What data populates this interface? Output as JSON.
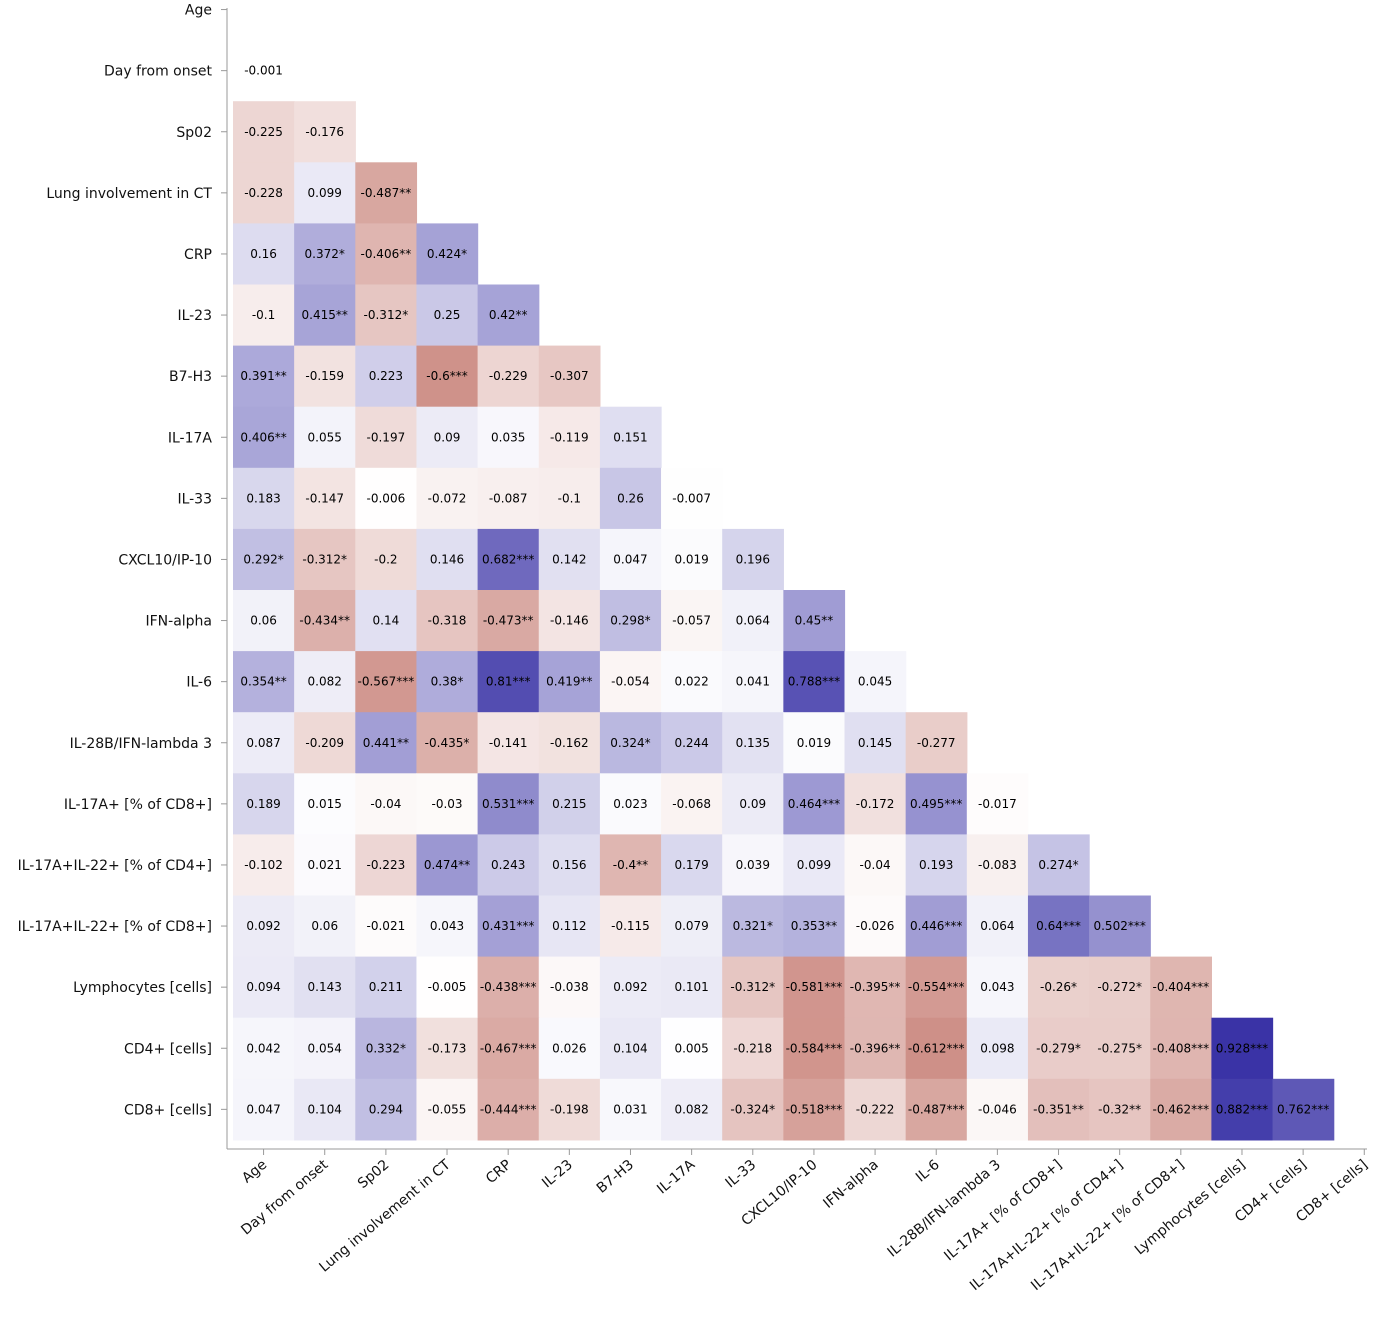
{
  "chart_data": {
    "type": "heatmap",
    "title": "",
    "variables": [
      "Age",
      "Day from onset",
      "Sp02",
      "Lung involvement in CT",
      "CRP",
      "IL-23",
      "B7-H3",
      "IL-17A",
      "IL-33",
      "CXCL10/IP-10",
      "IFN-alpha",
      "IL-6",
      "IL-28B/IFN-lambda 3",
      "IL-17A+ [% of CD8+]",
      "IL-17A+IL-22+ [% of CD4+]",
      "IL-17A+IL-22+ [% of CD8+]",
      "Lymphocytes [cells]",
      "CD4+ [cells]",
      "CD8+ [cells]"
    ],
    "values": [
      [],
      [
        -0.001
      ],
      [
        -0.225,
        -0.176
      ],
      [
        -0.228,
        0.099,
        -0.487
      ],
      [
        0.16,
        0.372,
        -0.406,
        0.424
      ],
      [
        -0.1,
        0.415,
        -0.312,
        0.25,
        0.42
      ],
      [
        0.391,
        -0.159,
        0.223,
        -0.6,
        -0.229,
        -0.307
      ],
      [
        0.406,
        0.055,
        -0.197,
        0.09,
        0.035,
        -0.119,
        0.151
      ],
      [
        0.183,
        -0.147,
        -0.006,
        -0.072,
        -0.087,
        -0.1,
        0.26,
        -0.007
      ],
      [
        0.292,
        -0.312,
        -0.2,
        0.146,
        0.682,
        0.142,
        0.047,
        0.019,
        0.196
      ],
      [
        0.06,
        -0.434,
        0.14,
        -0.318,
        -0.473,
        -0.146,
        0.298,
        -0.057,
        0.064,
        0.45
      ],
      [
        0.354,
        0.082,
        -0.567,
        0.38,
        0.81,
        0.419,
        -0.054,
        0.022,
        0.041,
        0.788,
        0.045
      ],
      [
        0.087,
        -0.209,
        0.441,
        -0.435,
        -0.141,
        -0.162,
        0.324,
        0.244,
        0.135,
        0.019,
        0.145,
        -0.277
      ],
      [
        0.189,
        0.015,
        -0.04,
        -0.03,
        0.531,
        0.215,
        0.023,
        -0.068,
        0.09,
        0.464,
        -0.172,
        0.495,
        -0.017
      ],
      [
        -0.102,
        0.021,
        -0.223,
        0.474,
        0.243,
        0.156,
        -0.4,
        0.179,
        0.039,
        0.099,
        -0.04,
        0.193,
        -0.083,
        0.274
      ],
      [
        0.092,
        0.06,
        -0.021,
        0.043,
        0.431,
        0.112,
        -0.115,
        0.079,
        0.321,
        0.353,
        -0.026,
        0.446,
        0.064,
        0.64,
        0.502
      ],
      [
        0.094,
        0.143,
        0.211,
        -0.005,
        -0.438,
        -0.038,
        0.092,
        0.101,
        -0.312,
        -0.581,
        -0.395,
        -0.554,
        0.043,
        -0.26,
        -0.272,
        -0.404
      ],
      [
        0.042,
        0.054,
        0.332,
        -0.173,
        -0.467,
        0.026,
        0.104,
        0.005,
        -0.218,
        -0.584,
        -0.396,
        -0.612,
        0.098,
        -0.279,
        -0.275,
        -0.408,
        0.928
      ],
      [
        0.047,
        0.104,
        0.294,
        -0.055,
        -0.444,
        -0.198,
        0.031,
        0.082,
        -0.324,
        -0.518,
        -0.222,
        -0.487,
        -0.046,
        -0.351,
        -0.32,
        -0.462,
        0.882,
        0.762
      ]
    ],
    "labels": [
      [],
      [
        "-0.001"
      ],
      [
        "-0.225",
        "-0.176"
      ],
      [
        "-0.228",
        "0.099",
        "-0.487**"
      ],
      [
        "0.16",
        "0.372*",
        "-0.406**",
        "0.424*"
      ],
      [
        "-0.1",
        "0.415**",
        "-0.312*",
        "0.25",
        "0.42**"
      ],
      [
        "0.391**",
        "-0.159",
        "0.223",
        "-0.6***",
        "-0.229",
        "-0.307"
      ],
      [
        "0.406**",
        "0.055",
        "-0.197",
        "0.09",
        "0.035",
        "-0.119",
        "0.151"
      ],
      [
        "0.183",
        "-0.147",
        "-0.006",
        "-0.072",
        "-0.087",
        "-0.1",
        "0.26",
        "-0.007"
      ],
      [
        "0.292*",
        "-0.312*",
        "-0.2",
        "0.146",
        "0.682***",
        "0.142",
        "0.047",
        "0.019",
        "0.196"
      ],
      [
        "0.06",
        "-0.434**",
        "0.14",
        "-0.318",
        "-0.473**",
        "-0.146",
        "0.298*",
        "-0.057",
        "0.064",
        "0.45**"
      ],
      [
        "0.354**",
        "0.082",
        "-0.567***",
        "0.38*",
        "0.81***",
        "0.419**",
        "-0.054",
        "0.022",
        "0.041",
        "0.788***",
        "0.045"
      ],
      [
        "0.087",
        "-0.209",
        "0.441**",
        "-0.435*",
        "-0.141",
        "-0.162",
        "0.324*",
        "0.244",
        "0.135",
        "0.019",
        "0.145",
        "-0.277"
      ],
      [
        "0.189",
        "0.015",
        "-0.04",
        "-0.03",
        "0.531***",
        "0.215",
        "0.023",
        "-0.068",
        "0.09",
        "0.464***",
        "-0.172",
        "0.495***",
        "-0.017"
      ],
      [
        "-0.102",
        "0.021",
        "-0.223",
        "0.474**",
        "0.243",
        "0.156",
        "-0.4**",
        "0.179",
        "0.039",
        "0.099",
        "-0.04",
        "0.193",
        "-0.083",
        "0.274*"
      ],
      [
        "0.092",
        "0.06",
        "-0.021",
        "0.043",
        "0.431***",
        "0.112",
        "-0.115",
        "0.079",
        "0.321*",
        "0.353**",
        "-0.026",
        "0.446***",
        "0.064",
        "0.64***",
        "0.502***"
      ],
      [
        "0.094",
        "0.143",
        "0.211",
        "-0.005",
        "-0.438***",
        "-0.038",
        "0.092",
        "0.101",
        "-0.312*",
        "-0.581***",
        "-0.395**",
        "-0.554***",
        "0.043",
        "-0.26*",
        "-0.272*",
        "-0.404***"
      ],
      [
        "0.042",
        "0.054",
        "0.332*",
        "-0.173",
        "-0.467***",
        "0.026",
        "0.104",
        "0.005",
        "-0.218",
        "-0.584***",
        "-0.396**",
        "-0.612***",
        "0.098",
        "-0.279*",
        "-0.275*",
        "-0.408***",
        "0.928***"
      ],
      [
        "0.047",
        "0.104",
        "0.294",
        "-0.055",
        "-0.444***",
        "-0.198",
        "0.031",
        "0.082",
        "-0.324*",
        "-0.518***",
        "-0.222",
        "-0.487***",
        "-0.046",
        "-0.351**",
        "-0.32**",
        "-0.462***",
        "0.882***",
        "0.762***"
      ]
    ],
    "color_scale": {
      "negative": "#b5564a",
      "zero": "#ffffff",
      "positive": "#3a33a6",
      "range": [
        -1,
        1
      ]
    },
    "xlabel": "",
    "ylabel": ""
  }
}
